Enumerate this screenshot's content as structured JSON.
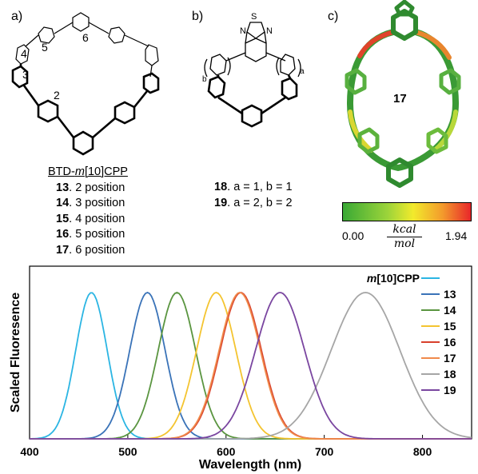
{
  "panel_a": {
    "label": "a)",
    "ring_numbers": [
      "2",
      "3",
      "4",
      "5",
      "6"
    ],
    "title_pre": "BTD-",
    "title_italic": "m",
    "title_post": "[10]CPP",
    "compounds": [
      {
        "num": "13",
        "text": ". 2 position"
      },
      {
        "num": "14",
        "text": ". 3 position"
      },
      {
        "num": "15",
        "text": ". 4 position"
      },
      {
        "num": "16",
        "text": ". 5 position"
      },
      {
        "num": "17",
        "text": ". 6 position"
      }
    ]
  },
  "panel_b": {
    "label": "b)",
    "atoms": {
      "s": "S",
      "n1": "N",
      "n2": "N",
      "a": "a",
      "b": "b"
    },
    "compounds": [
      {
        "num": "18",
        "text": ". a = 1, b = 1"
      },
      {
        "num": "19",
        "text": ". a = 2, b = 2"
      }
    ]
  },
  "panel_c": {
    "label": "c)",
    "compound": "17",
    "colorbar": {
      "min": "0.00",
      "max": "1.94",
      "unit_num": "kcal",
      "unit_den": "mol",
      "colors": [
        "#3aa935",
        "#9cd43a",
        "#f2ea2c",
        "#f39a2c",
        "#e8262a"
      ]
    }
  },
  "chart_data": {
    "type": "line",
    "xlabel": "Wavelength (nm)",
    "ylabel": "Scaled Fluoresence",
    "xlim": [
      400,
      850
    ],
    "xticks": [
      400,
      500,
      600,
      700,
      800
    ],
    "series": [
      {
        "name": "m[10]CPP",
        "name_italic": "m",
        "name_rest": "[10]CPP",
        "color": "#2bb5e3",
        "peak": 463,
        "sigma": 16
      },
      {
        "name": "13",
        "color": "#3a73b8",
        "peak": 520,
        "sigma": 18
      },
      {
        "name": "14",
        "color": "#5a9540",
        "peak": 550,
        "sigma": 19
      },
      {
        "name": "15",
        "color": "#f4c430",
        "peak": 590,
        "sigma": 20
      },
      {
        "name": "16",
        "color": "#d8402c",
        "peak": 615,
        "sigma": 21
      },
      {
        "name": "17",
        "color": "#f08a4b",
        "peak": 614,
        "sigma": 21
      },
      {
        "name": "18",
        "color": "#a6a6a6",
        "peak": 742,
        "sigma": 35
      },
      {
        "name": "19",
        "color": "#7a46a0",
        "peak": 655,
        "sigma": 25
      }
    ]
  }
}
